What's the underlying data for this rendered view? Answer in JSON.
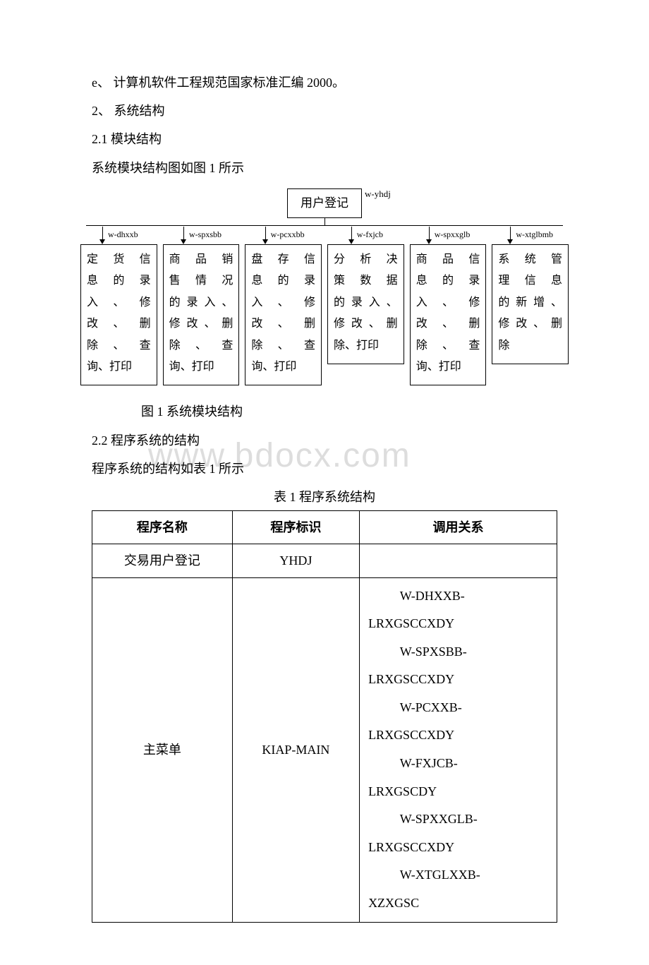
{
  "text": {
    "p1": "e、  计算机软件工程规范国家标准汇编 2000。",
    "p2": "2、  系统结构",
    "p3": "2.1 模块结构",
    "p4": "系统模块结构图如图 1 所示",
    "fig_caption": "图 1    系统模块结构",
    "p5": "2.2 程序系统的结构",
    "p6": "程序系统的结构如表 1 所示",
    "tbl_caption": "表 1    程序系统结构"
  },
  "diagram": {
    "root": {
      "label": "w-yhdj",
      "text": "用户登记"
    },
    "branches": [
      {
        "label": "w-dhxxb",
        "lines": [
          "定货信",
          "息的录",
          "入、修",
          "改、删",
          "除、查",
          "询、打印"
        ]
      },
      {
        "label": "w-spxsbb",
        "lines": [
          "商品销",
          "售情况",
          "的录入、",
          "修改、删",
          "除、查",
          "询、打印"
        ]
      },
      {
        "label": "w-pcxxbb",
        "lines": [
          "盘存信",
          "息的录",
          "入、修",
          "改、删",
          "除、查",
          "询、打印"
        ]
      },
      {
        "label": "w-fxjcb",
        "lines": [
          "分析决",
          "策数据",
          "的录入、",
          "修改、删",
          "除、打印"
        ]
      },
      {
        "label": "w-spxxglb",
        "lines": [
          "商品信",
          "息的录",
          "入、修",
          "改、删",
          "除、查",
          "询、打印"
        ]
      },
      {
        "label": "w-xtglbmb",
        "lines": [
          "系统管",
          "理信息",
          "的新增、",
          "修改、删",
          "除"
        ]
      }
    ]
  },
  "table": {
    "headers": [
      "程序名称",
      "程序标识",
      "调用关系"
    ],
    "rows": [
      {
        "c0": "交易用户登记",
        "c1": "YHDJ",
        "c2": ""
      },
      {
        "c0": "主菜单",
        "c1": "KIAP-MAIN",
        "c2_lines": [
          "          W-DHXXB-",
          "LRXGSCCXDY",
          "          W-SPXSBB-",
          "LRXGSCCXDY",
          "          W-PCXXB-",
          "LRXGSCCXDY",
          "          W-FXJCB-",
          "LRXGSCDY",
          "          W-SPXXGLB-",
          "LRXGSCCXDY",
          "          W-XTGLXXB-",
          "XZXGSC"
        ]
      }
    ]
  },
  "watermark": "www.bdocx.com"
}
